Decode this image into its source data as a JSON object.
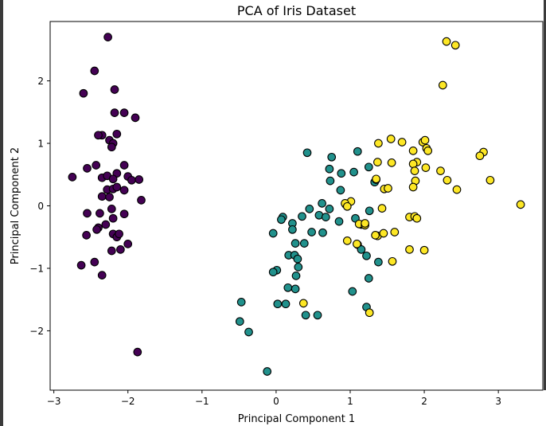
{
  "chart_data": {
    "type": "scatter",
    "title": "PCA of Iris Dataset",
    "xlabel": "Principal Component 1",
    "ylabel": "Principal Component 2",
    "xlim": [
      -3.05,
      3.6
    ],
    "ylim": [
      -2.95,
      2.95
    ],
    "xticks": [
      -3,
      -2,
      -1,
      0,
      1,
      2,
      3
    ],
    "yticks": [
      -2,
      -1,
      0,
      1,
      2
    ],
    "xtick_labels": [
      "−3",
      "−2",
      "−1",
      "0",
      "1",
      "2",
      "3"
    ],
    "ytick_labels": [
      "−2",
      "−1",
      "0",
      "1",
      "2"
    ],
    "grid": false,
    "colors": [
      "#440154",
      "#21918c",
      "#fde725"
    ],
    "marker_edge": "#000000",
    "series": [
      {
        "color": "#440154",
        "points": [
          [
            -2.27,
            2.7
          ],
          [
            -2.45,
            2.16
          ],
          [
            -2.6,
            1.8
          ],
          [
            -2.18,
            1.86
          ],
          [
            -2.18,
            1.49
          ],
          [
            -2.05,
            1.49
          ],
          [
            -1.9,
            1.41
          ],
          [
            -2.35,
            1.13
          ],
          [
            -2.4,
            1.13
          ],
          [
            -2.15,
            1.15
          ],
          [
            -2.25,
            1.05
          ],
          [
            -2.2,
            1.0
          ],
          [
            -2.22,
            0.94
          ],
          [
            -2.55,
            0.6
          ],
          [
            -2.43,
            0.65
          ],
          [
            -2.05,
            0.65
          ],
          [
            -2.35,
            0.45
          ],
          [
            -2.28,
            0.48
          ],
          [
            -2.15,
            0.52
          ],
          [
            -2.2,
            0.43
          ],
          [
            -2.0,
            0.47
          ],
          [
            -1.95,
            0.41
          ],
          [
            -1.85,
            0.42
          ],
          [
            -2.75,
            0.46
          ],
          [
            -2.28,
            0.26
          ],
          [
            -2.2,
            0.27
          ],
          [
            -2.15,
            0.3
          ],
          [
            -2.05,
            0.25
          ],
          [
            -2.35,
            0.15
          ],
          [
            -2.25,
            0.14
          ],
          [
            -1.82,
            0.09
          ],
          [
            -2.55,
            -0.12
          ],
          [
            -2.38,
            -0.12
          ],
          [
            -2.22,
            -0.05
          ],
          [
            -2.05,
            -0.13
          ],
          [
            -2.2,
            -0.2
          ],
          [
            -2.4,
            -0.35
          ],
          [
            -2.3,
            -0.3
          ],
          [
            -2.42,
            -0.38
          ],
          [
            -2.2,
            -0.45
          ],
          [
            -2.15,
            -0.5
          ],
          [
            -2.12,
            -0.45
          ],
          [
            -2.56,
            -0.47
          ],
          [
            -2.0,
            -0.61
          ],
          [
            -2.22,
            -0.72
          ],
          [
            -2.1,
            -0.7
          ],
          [
            -2.45,
            -0.9
          ],
          [
            -2.63,
            -0.95
          ],
          [
            -2.35,
            -1.11
          ],
          [
            -1.87,
            -2.34
          ]
        ]
      },
      {
        "color": "#21918c",
        "points": [
          [
            0.42,
            0.85
          ],
          [
            0.75,
            0.78
          ],
          [
            1.1,
            0.87
          ],
          [
            1.25,
            0.62
          ],
          [
            1.05,
            0.54
          ],
          [
            0.72,
            0.59
          ],
          [
            0.88,
            0.52
          ],
          [
            1.33,
            0.38
          ],
          [
            0.73,
            0.4
          ],
          [
            0.87,
            0.25
          ],
          [
            0.62,
            0.04
          ],
          [
            0.94,
            0.02
          ],
          [
            0.45,
            -0.05
          ],
          [
            0.72,
            -0.05
          ],
          [
            0.58,
            -0.15
          ],
          [
            0.67,
            -0.18
          ],
          [
            0.35,
            -0.17
          ],
          [
            0.09,
            -0.18
          ],
          [
            0.07,
            -0.22
          ],
          [
            0.22,
            -0.28
          ],
          [
            1.07,
            -0.2
          ],
          [
            1.15,
            -0.3
          ],
          [
            0.85,
            -0.25
          ],
          [
            1.26,
            -0.08
          ],
          [
            0.22,
            -0.38
          ],
          [
            -0.04,
            -0.44
          ],
          [
            0.48,
            -0.42
          ],
          [
            0.63,
            -0.43
          ],
          [
            0.26,
            -0.6
          ],
          [
            0.38,
            -0.6
          ],
          [
            1.1,
            -0.62
          ],
          [
            1.15,
            -0.7
          ],
          [
            1.22,
            -0.8
          ],
          [
            1.38,
            -0.9
          ],
          [
            0.17,
            -0.79
          ],
          [
            0.25,
            -0.79
          ],
          [
            0.29,
            -0.85
          ],
          [
            0.3,
            -0.98
          ],
          [
            1.25,
            -1.16
          ],
          [
            0.01,
            -1.03
          ],
          [
            -0.04,
            -1.06
          ],
          [
            0.27,
            -1.12
          ],
          [
            0.16,
            -1.31
          ],
          [
            0.26,
            -1.33
          ],
          [
            1.03,
            -1.37
          ],
          [
            -0.47,
            -1.54
          ],
          [
            0.02,
            -1.57
          ],
          [
            0.13,
            -1.57
          ],
          [
            1.22,
            -1.62
          ],
          [
            -0.49,
            -1.85
          ],
          [
            -0.37,
            -2.02
          ],
          [
            0.4,
            -1.75
          ],
          [
            0.56,
            -1.75
          ],
          [
            -0.12,
            -2.65
          ],
          [
            1.35,
            0.42
          ]
        ]
      },
      {
        "color": "#fde725",
        "points": [
          [
            2.3,
            2.63
          ],
          [
            2.42,
            2.57
          ],
          [
            2.25,
            1.93
          ],
          [
            1.55,
            1.07
          ],
          [
            1.7,
            1.02
          ],
          [
            1.98,
            1.02
          ],
          [
            2.01,
            1.05
          ],
          [
            1.38,
            1.0
          ],
          [
            2.03,
            0.92
          ],
          [
            2.05,
            0.88
          ],
          [
            1.85,
            0.88
          ],
          [
            2.8,
            0.86
          ],
          [
            2.75,
            0.8
          ],
          [
            1.9,
            0.7
          ],
          [
            1.37,
            0.7
          ],
          [
            1.56,
            0.69
          ],
          [
            1.85,
            0.67
          ],
          [
            2.02,
            0.61
          ],
          [
            2.22,
            0.56
          ],
          [
            1.87,
            0.56
          ],
          [
            1.35,
            0.43
          ],
          [
            2.31,
            0.41
          ],
          [
            2.89,
            0.41
          ],
          [
            1.88,
            0.4
          ],
          [
            1.85,
            0.3
          ],
          [
            1.46,
            0.27
          ],
          [
            1.51,
            0.28
          ],
          [
            2.44,
            0.26
          ],
          [
            1.01,
            0.07
          ],
          [
            0.93,
            0.04
          ],
          [
            0.96,
            -0.01
          ],
          [
            3.3,
            0.02
          ],
          [
            1.43,
            -0.04
          ],
          [
            1.8,
            -0.18
          ],
          [
            1.87,
            -0.17
          ],
          [
            1.12,
            -0.29
          ],
          [
            1.2,
            -0.31
          ],
          [
            1.37,
            -0.48
          ],
          [
            1.45,
            -0.44
          ],
          [
            1.6,
            -0.42
          ],
          [
            0.96,
            -0.56
          ],
          [
            1.09,
            -0.61
          ],
          [
            2.0,
            -0.71
          ],
          [
            1.57,
            -0.89
          ],
          [
            1.26,
            -1.71
          ],
          [
            0.37,
            -1.56
          ],
          [
            1.8,
            -0.7
          ],
          [
            1.2,
            -0.28
          ],
          [
            1.34,
            -0.47
          ],
          [
            1.9,
            -0.2
          ]
        ]
      }
    ]
  }
}
